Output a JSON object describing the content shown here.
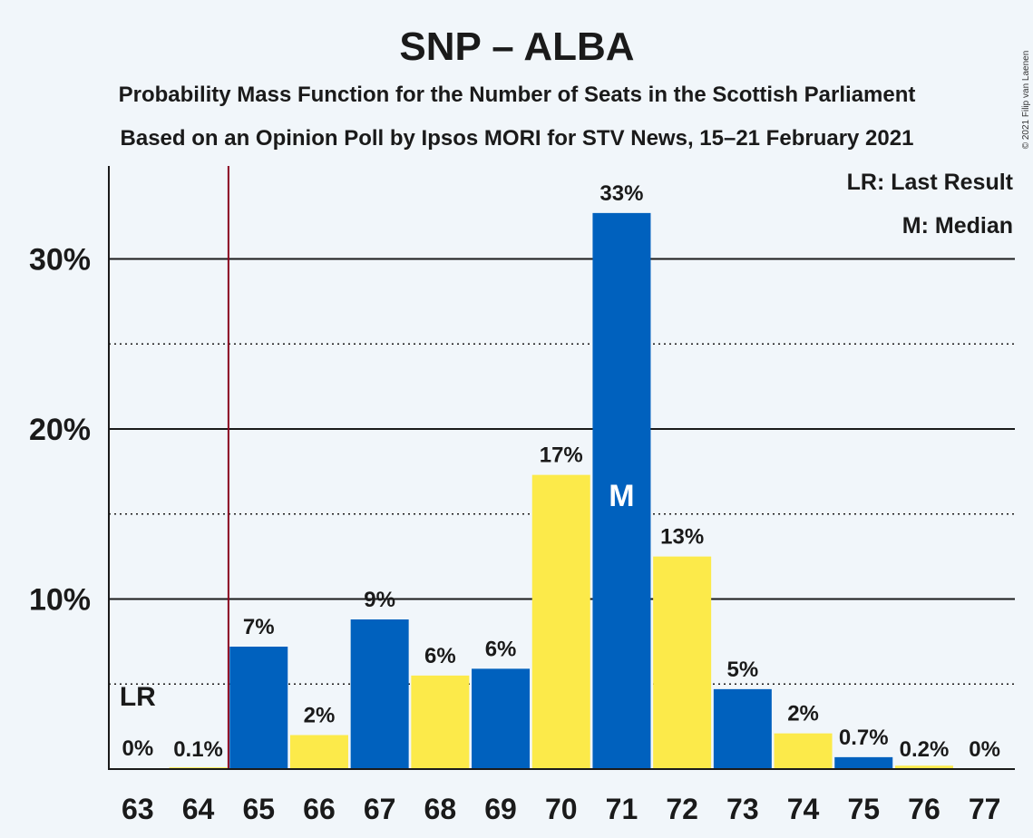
{
  "title": "SNP – ALBA",
  "subtitle1": "Probability Mass Function for the Number of Seats in the Scottish Parliament",
  "subtitle2": "Based on an Opinion Poll by Ipsos MORI for STV News, 15–21 February 2021",
  "copyright": "© 2021 Filip van Laenen",
  "legend": {
    "lr": "LR: Last Result",
    "m": "M: Median"
  },
  "markers": {
    "lr_label": "LR",
    "median_label": "M",
    "last_result_seat": 64.5,
    "median_seat": 71
  },
  "colors": {
    "blue": "#0061be",
    "yellow": "#fcea4a",
    "background": "#f1f6fa",
    "last_result_line": "#8b0020"
  },
  "chart_data": {
    "type": "bar",
    "title": "SNP – ALBA",
    "xlabel": "",
    "ylabel": "",
    "ylim": [
      0,
      35.5
    ],
    "categories": [
      "63",
      "64",
      "65",
      "66",
      "67",
      "68",
      "69",
      "70",
      "71",
      "72",
      "73",
      "74",
      "75",
      "76",
      "77"
    ],
    "values": [
      0,
      0.1,
      7.2,
      2.0,
      8.8,
      5.5,
      5.9,
      17.3,
      32.7,
      12.5,
      4.7,
      2.1,
      0.7,
      0.2,
      0
    ],
    "labels": [
      "0%",
      "0.1%",
      "7%",
      "2%",
      "9%",
      "6%",
      "6%",
      "17%",
      "33%",
      "13%",
      "5%",
      "2%",
      "0.7%",
      "0.2%",
      "0%"
    ],
    "yticks": [
      {
        "value": 10,
        "label": "10%"
      },
      {
        "value": 20,
        "label": "20%"
      },
      {
        "value": 30,
        "label": "30%"
      }
    ],
    "minor_gridlines": [
      5,
      15,
      25
    ],
    "grid": true,
    "legend_position": "top-right"
  }
}
